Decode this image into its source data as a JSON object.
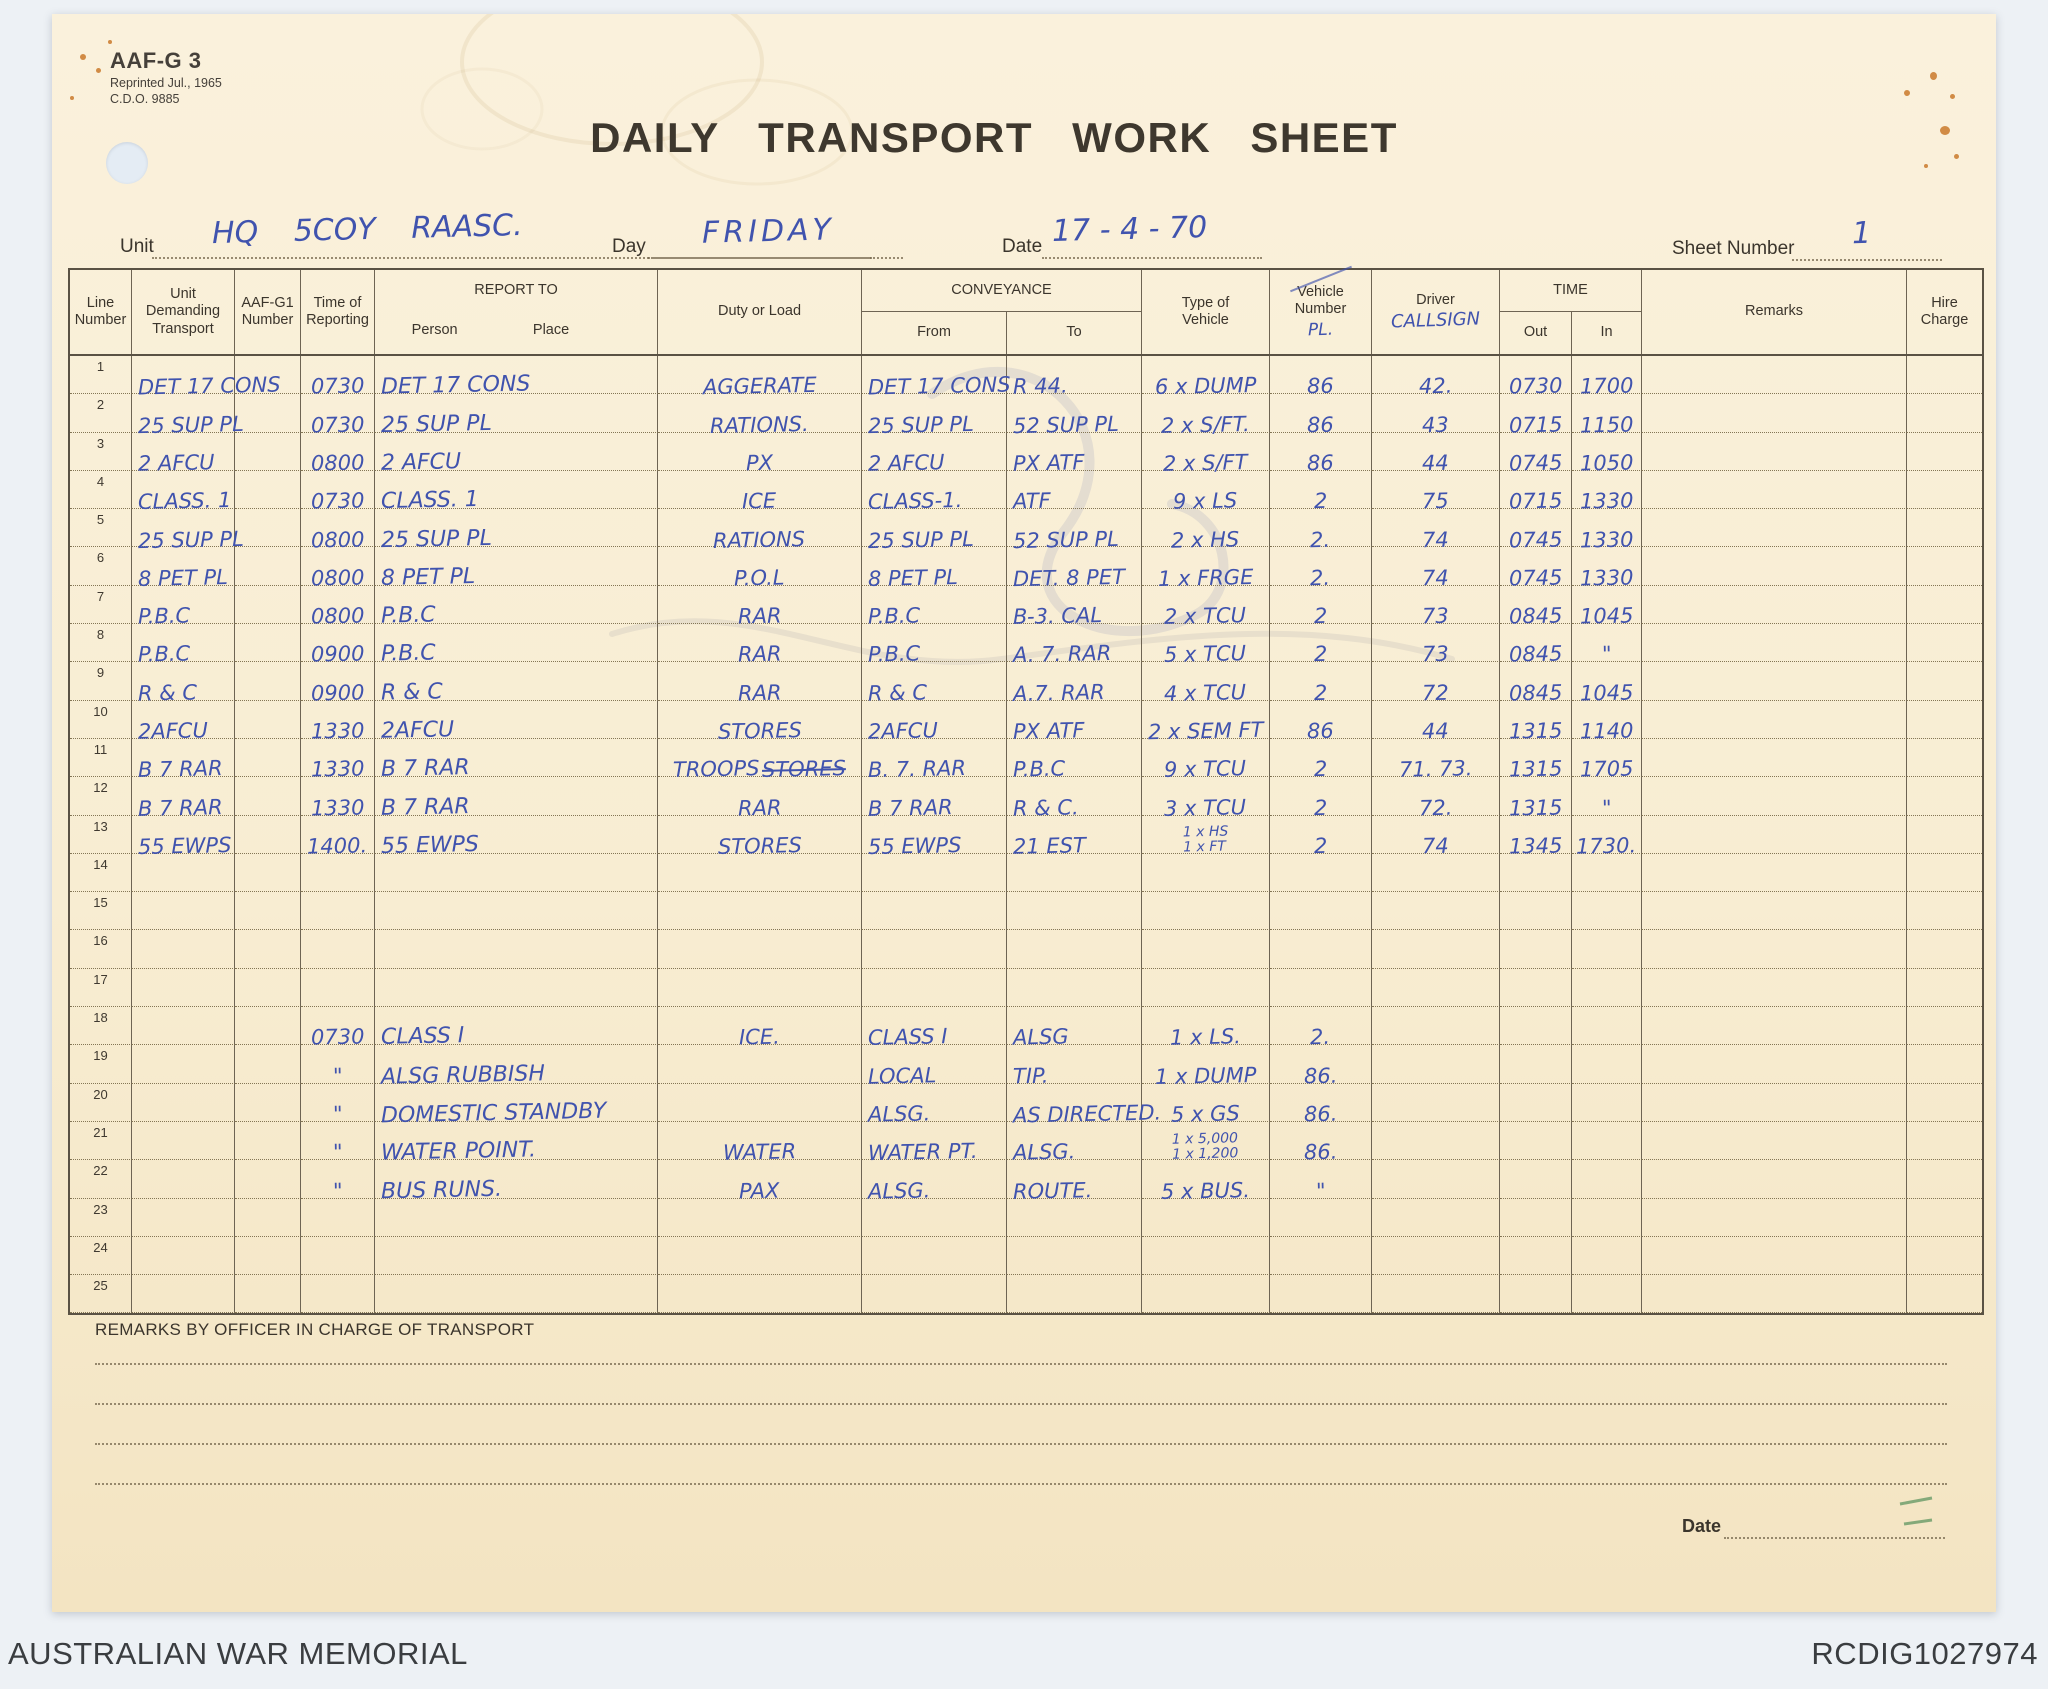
{
  "meta": {
    "form_code": "AAF-G 3",
    "reprint_line": "Reprinted Jul., 1965",
    "cdo_line": "C.D.O. 9885"
  },
  "title": "DAILY TRANSPORT WORK SHEET",
  "fields": {
    "unit_label": "Unit",
    "unit_value": "HQ 5COY RAASC.",
    "day_label": "Day",
    "day_value": "FRIDAY",
    "date_label": "Date",
    "date_value": "17 - 4 - 70",
    "sheet_label": "Sheet Number",
    "sheet_value": "1"
  },
  "table": {
    "headers": {
      "line_number": "Line\nNumber",
      "unit": "Unit\nDemanding\nTransport",
      "aafg1": "AAF-G1\nNumber",
      "time": "Time of\nReporting",
      "report_to": "REPORT TO",
      "person": "Person",
      "place": "Place",
      "duty": "Duty or Load",
      "conveyance": "CONVEYANCE",
      "from": "From",
      "to": "To",
      "type": "Type of\nVehicle",
      "vehicle_number": "Vehicle\nNumber",
      "vehicle_number_hw": "PL.",
      "driver": "Driver",
      "driver_hw": "CALLSIGN",
      "time_group": "TIME",
      "out": "Out",
      "in": "In",
      "remarks": "Remarks",
      "hire": "Hire\nCharge"
    },
    "rows": [
      {
        "line": "1",
        "unit": "DET 17 CONS",
        "time": "0730",
        "person": "DET 17 CONS",
        "duty": "AGGERATE",
        "from": "DET 17 CONS",
        "to": "R 44.",
        "type": "6 x DUMP",
        "veh": "86",
        "driver": "42.",
        "out": "0730",
        "in": "1700"
      },
      {
        "line": "2",
        "unit": "25 SUP PL",
        "time": "0730",
        "person": "25 SUP PL",
        "duty": "RATIONS.",
        "from": "25 SUP PL",
        "to": "52 SUP PL",
        "type": "2 x S/FT.",
        "veh": "86",
        "driver": "43",
        "out": "0715",
        "in": "1150"
      },
      {
        "line": "3",
        "unit": "2 AFCU",
        "time": "0800",
        "person": "2 AFCU",
        "duty": "PX",
        "from": "2 AFCU",
        "to": "PX ATF",
        "type": "2 x S/FT",
        "veh": "86",
        "driver": "44",
        "out": "0745",
        "in": "1050"
      },
      {
        "line": "4",
        "unit": "CLASS. 1",
        "time": "0730",
        "person": "CLASS. 1",
        "duty": "ICE",
        "from": "CLASS-1.",
        "to": "ATF",
        "type": "9 x LS",
        "veh": "2",
        "driver": "75",
        "out": "0715",
        "in": "1330"
      },
      {
        "line": "5",
        "unit": "25 SUP PL",
        "time": "0800",
        "person": "25 SUP PL",
        "duty": "RATIONS",
        "from": "25 SUP PL",
        "to": "52 SUP PL",
        "type": "2 x HS",
        "veh": "2.",
        "driver": "74",
        "out": "0745",
        "in": "1330"
      },
      {
        "line": "6",
        "unit": "8 PET PL",
        "time": "0800",
        "person": "8 PET PL",
        "duty": "P.O.L",
        "from": "8 PET PL",
        "to": "DET. 8 PET",
        "type": "1 x FRGE",
        "veh": "2.",
        "driver": "74",
        "out": "0745",
        "in": "1330"
      },
      {
        "line": "7",
        "unit": "P.B.C",
        "time": "0800",
        "person": "P.B.C",
        "duty": "RAR",
        "from": "P.B.C",
        "to": "B-3. CAL",
        "type": "2 x TCU",
        "veh": "2",
        "driver": "73",
        "out": "0845",
        "in": "1045"
      },
      {
        "line": "8",
        "unit": "P.B.C",
        "time": "0900",
        "person": "P.B.C",
        "duty": "RAR",
        "from": "P.B.C",
        "to": "A. 7. RAR",
        "type": "5 x TCU",
        "veh": "2",
        "driver": "73",
        "out": "0845",
        "in": "\""
      },
      {
        "line": "9",
        "unit": "R & C",
        "time": "0900",
        "person": "R & C",
        "duty": "RAR",
        "from": "R & C",
        "to": "A.7. RAR",
        "type": "4 x TCU",
        "veh": "2",
        "driver": "72",
        "out": "0845",
        "in": "1045"
      },
      {
        "line": "10",
        "unit": "2AFCU",
        "time": "1330",
        "person": "2AFCU",
        "duty": "STORES",
        "from": "2AFCU",
        "to": "PX ATF",
        "type": "2 x SEM FT",
        "veh": "86",
        "driver": "44",
        "out": "1315",
        "in": "1140"
      },
      {
        "line": "11",
        "unit": "B 7 RAR",
        "time": "1330",
        "person": "B 7 RAR",
        "duty": "TROOPS",
        "duty_struck": "STORES",
        "from": "B. 7. RAR",
        "to": "P.B.C",
        "type": "9 x TCU",
        "veh": "2",
        "driver": "71. 73.",
        "out": "1315",
        "in": "1705"
      },
      {
        "line": "12",
        "unit": "B 7 RAR",
        "time": "1330",
        "person": "B 7 RAR",
        "duty": "RAR",
        "from": "B 7 RAR",
        "to": "R & C.",
        "type": "3 x TCU",
        "veh": "2",
        "driver": "72.",
        "out": "1315",
        "in": "\""
      },
      {
        "line": "13",
        "unit": "55 EWPS",
        "time": "1400.",
        "person": "55 EWPS",
        "duty": "STORES",
        "from": "55 EWPS",
        "to": "21 EST",
        "type": "1 x HS\n1 x FT",
        "veh": "2",
        "driver": "74",
        "out": "1345",
        "in": "1730."
      },
      {
        "line": "14"
      },
      {
        "line": "15"
      },
      {
        "line": "16"
      },
      {
        "line": "17"
      },
      {
        "line": "18",
        "time": "0730",
        "person": "CLASS I",
        "duty": "ICE.",
        "from": "CLASS I",
        "to": "ALSG",
        "type": "1 x LS.",
        "veh": "2."
      },
      {
        "line": "19",
        "time": "\"",
        "person": "ALSG RUBBISH",
        "from": "LOCAL",
        "to": "TIP.",
        "type": "1 x DUMP",
        "veh": "86."
      },
      {
        "line": "20",
        "time": "\"",
        "person": "DOMESTIC STANDBY",
        "from": "ALSG.",
        "to": "AS DIRECTED.",
        "type": "5 x GS",
        "veh": "86."
      },
      {
        "line": "21",
        "time": "\"",
        "person": "WATER POINT.",
        "duty": "WATER",
        "from": "WATER PT.",
        "to": "ALSG.",
        "type": "1 x 5,000\n1 x 1,200",
        "veh": "86."
      },
      {
        "line": "22",
        "time": "\"",
        "person": "BUS RUNS.",
        "duty": "PAX",
        "from": "ALSG.",
        "to": "ROUTE.",
        "type": "5 x BUS.",
        "veh": "\""
      },
      {
        "line": "23"
      },
      {
        "line": "24"
      },
      {
        "line": "25"
      }
    ]
  },
  "remarks_label": "REMARKS BY OFFICER IN CHARGE OF TRANSPORT",
  "bottom_date_label": "Date",
  "scan_footer": {
    "left": "AUSTRALIAN WAR MEMORIAL",
    "right": "RCDIG1027974"
  }
}
